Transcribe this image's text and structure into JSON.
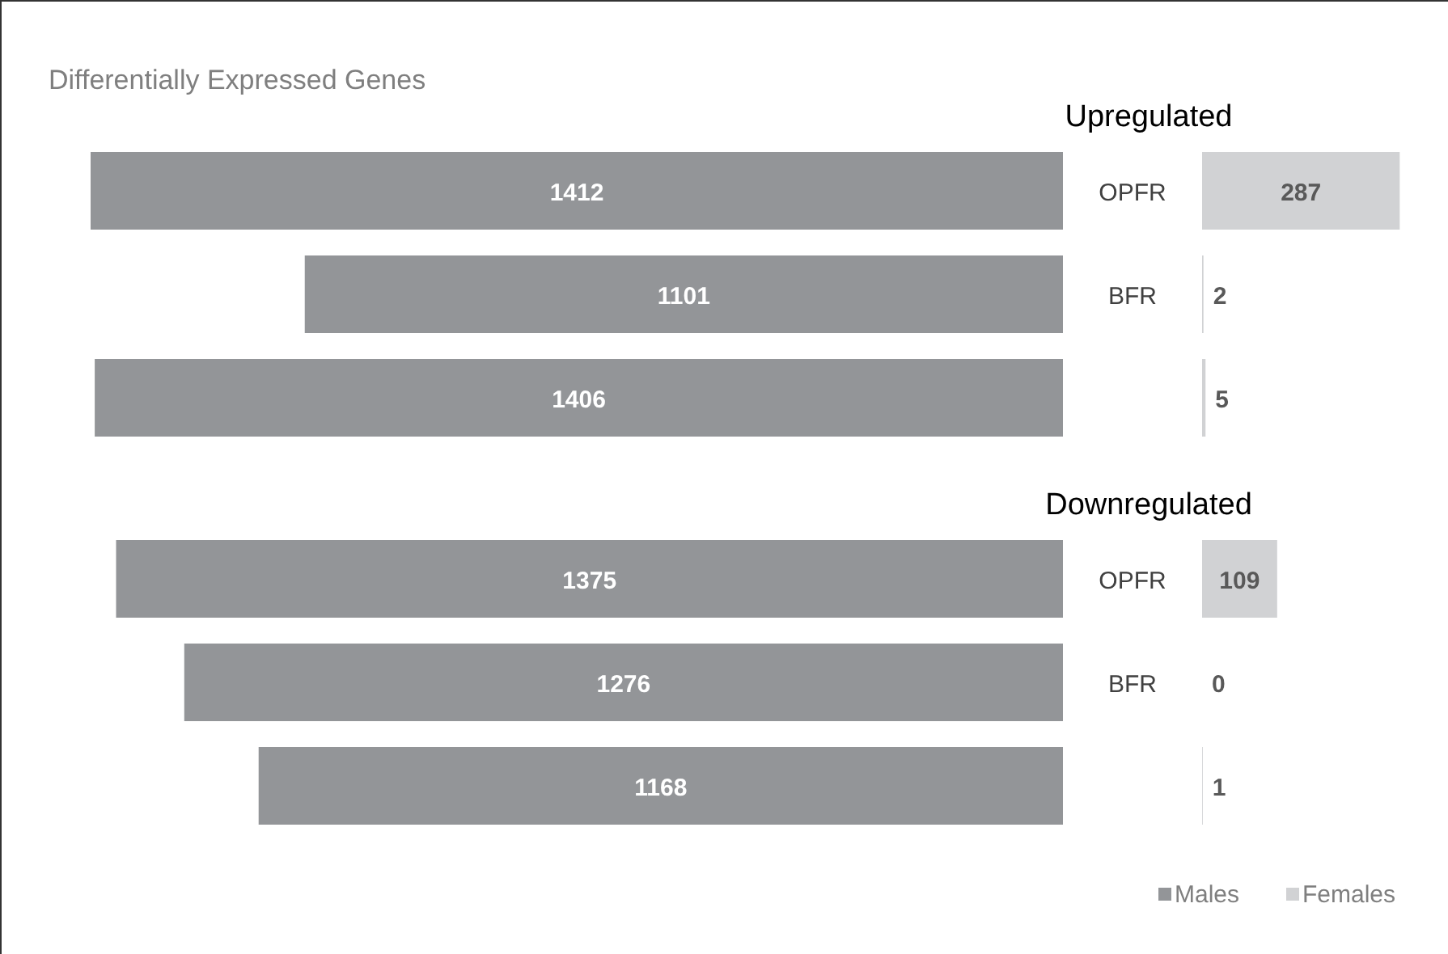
{
  "chart_data": [
    {
      "type": "bar",
      "orientation": "horizontal",
      "title": "Differentially Expressed Genes",
      "subtitle": "Upregulated",
      "categories": [
        "OPFR",
        "BFR",
        null
      ],
      "data_labels": true,
      "series": [
        {
          "color": "#939598",
          "values": [
            1412,
            1101,
            1406
          ]
        }
      ]
    },
    {
      "type": "bar",
      "orientation": "horizontal",
      "categories": [
        "OPFR",
        "BFR",
        null
      ],
      "tick_labels": false,
      "data_labels": true,
      "series": [
        {
          "color": "#d1d2d4",
          "values": [
            287,
            2,
            5
          ]
        }
      ]
    },
    {
      "type": "bar",
      "orientation": "horizontal",
      "title": "Downregulated",
      "categories": [
        "OPFR",
        "BFR",
        null
      ],
      "data_labels": true,
      "legend": "bottom right",
      "series": [
        {
          "name": "Males",
          "color": "#939598",
          "values": [
            1375,
            1276,
            1168
          ]
        }
      ]
    },
    {
      "type": "bar",
      "orientation": "horizontal",
      "categories": [
        "OPFR",
        "BFR",
        null
      ],
      "tick_labels": false,
      "data_labels": true,
      "legend": "bottom right",
      "series": [
        {
          "name": "Females",
          "color": "#d1d2d4",
          "values": [
            109,
            0,
            1
          ]
        }
      ]
    }
  ]
}
